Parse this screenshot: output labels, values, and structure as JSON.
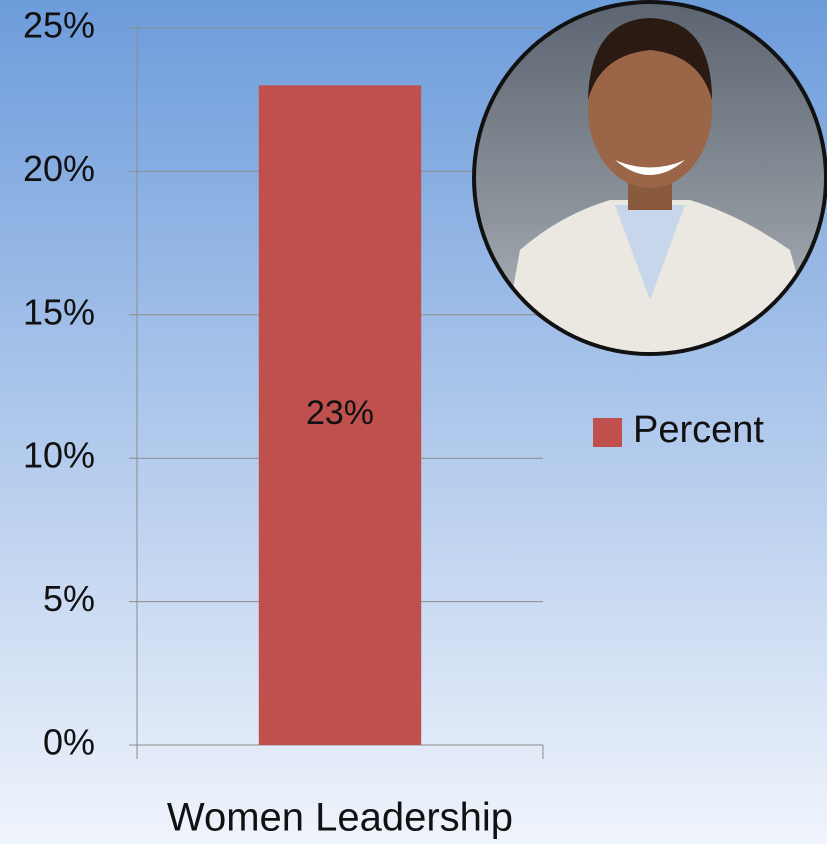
{
  "chart_data": {
    "type": "bar",
    "categories": [
      "Women Leadership"
    ],
    "series": [
      {
        "name": "Percent",
        "color": "#c0504d",
        "values": [
          23
        ],
        "value_labels": [
          "23%"
        ]
      }
    ],
    "ylim": [
      0,
      25
    ],
    "yticks": [
      {
        "value": 0,
        "label": "0%"
      },
      {
        "value": 5,
        "label": "5%"
      },
      {
        "value": 10,
        "label": "10%"
      },
      {
        "value": 15,
        "label": "15%"
      },
      {
        "value": 20,
        "label": "20%"
      },
      {
        "value": 25,
        "label": "25%"
      }
    ],
    "grid": true,
    "legend": "right"
  }
}
